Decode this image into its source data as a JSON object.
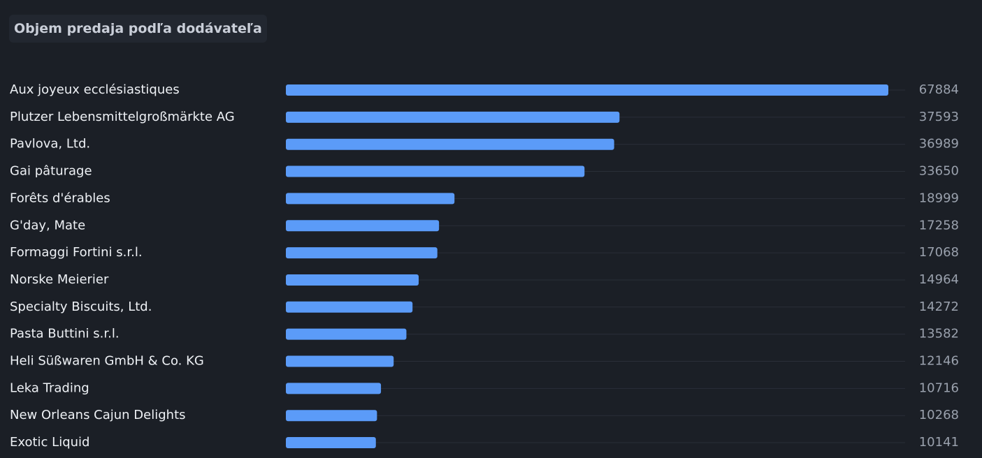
{
  "title": "Objem predaja podľa dodávateľa",
  "colors": {
    "background": "#1b1f26",
    "bar": "#5b9bf8",
    "label": "#eef1f5",
    "value": "#9aa1ad"
  },
  "chart_data": {
    "type": "bar",
    "orientation": "horizontal",
    "title": "Objem predaja podľa dodávateľa",
    "categories": [
      "Aux joyeux ecclésiastiques",
      "Plutzer Lebensmittelgroßmärkte AG",
      "Pavlova, Ltd.",
      "Gai pâturage",
      "Forêts d'érables",
      "G'day, Mate",
      "Formaggi Fortini s.r.l.",
      "Norske Meierier",
      "Specialty Biscuits, Ltd.",
      "Pasta Buttini s.r.l.",
      "Heli Süßwaren GmbH & Co. KG",
      "Leka Trading",
      "New Orleans Cajun Delights",
      "Exotic Liquid"
    ],
    "values": [
      67884,
      37593,
      36989,
      33650,
      18999,
      17258,
      17068,
      14964,
      14272,
      13582,
      12146,
      10716,
      10268,
      10141
    ],
    "xlim": [
      0,
      70000
    ],
    "grid": false,
    "legend": "none",
    "data_labels": "right"
  }
}
